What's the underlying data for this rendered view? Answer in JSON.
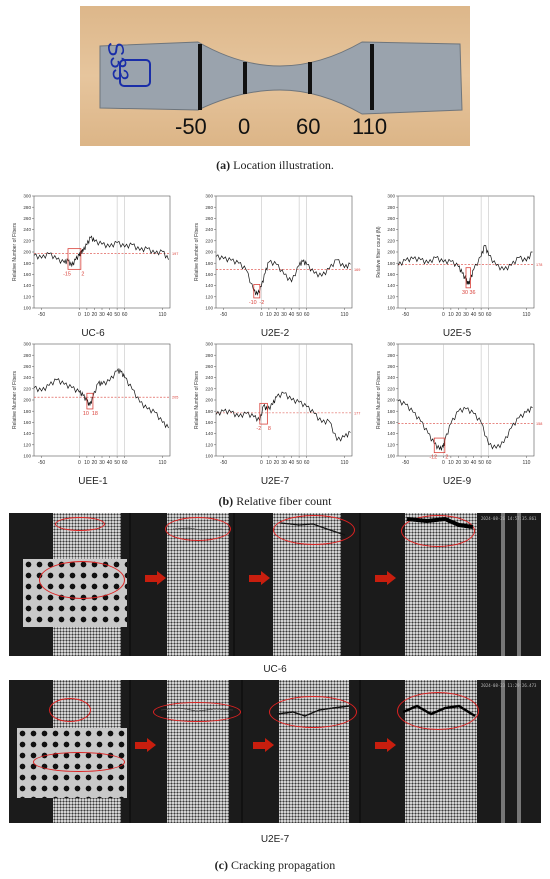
{
  "panel_a": {
    "marker_labels": [
      "-50",
      "0",
      "60",
      "110"
    ],
    "specimen_writing": "S33",
    "caption_letter": "(a)",
    "caption_text": "Location illustration."
  },
  "panel_b": {
    "caption_letter": "(b)",
    "caption_text": "Relative fiber count"
  },
  "panel_c": {
    "caption_letter": "(c)",
    "caption_text": "Cracking propagation",
    "row1_label": "UC-6",
    "row2_label": "U2E-7",
    "row1_timestamp": "2024-08-26 14:57:35.861",
    "row2_timestamp": "2024-08-23 11:29:26.473",
    "accent_color": "#c81e0e"
  },
  "chart_data": [
    {
      "type": "line",
      "title": "UC-6",
      "ylabel": "Relative Number of Fibers",
      "ylim": [
        100,
        300
      ],
      "yticks": [
        100,
        120,
        140,
        160,
        180,
        200,
        220,
        240,
        260,
        280,
        300
      ],
      "xticks": [
        -50,
        0,
        10,
        20,
        30,
        40,
        50,
        60,
        110
      ],
      "xlim": [
        -60,
        120
      ],
      "mean_value": 197,
      "mean_label": "197",
      "highlight": [
        -15,
        2
      ],
      "highlight_labels": [
        "-15",
        "2"
      ],
      "x": [
        -60,
        -50,
        -40,
        -30,
        -20,
        -15,
        -10,
        -5,
        0,
        2,
        5,
        10,
        15,
        20,
        30,
        40,
        50,
        60,
        70,
        80,
        90,
        100,
        110,
        118
      ],
      "y": [
        194,
        189,
        197,
        187,
        181,
        184,
        175,
        186,
        194,
        199,
        202,
        213,
        226,
        219,
        214,
        209,
        217,
        209,
        213,
        203,
        206,
        197,
        201,
        186
      ]
    },
    {
      "type": "line",
      "title": "U2E-2",
      "ylabel": "Relative Number of Fibers",
      "ylim": [
        100,
        300
      ],
      "yticks": [
        100,
        120,
        140,
        160,
        180,
        200,
        220,
        240,
        260,
        280,
        300
      ],
      "xticks": [
        -50,
        0,
        10,
        20,
        30,
        40,
        50,
        60,
        110
      ],
      "xlim": [
        -60,
        120
      ],
      "mean_value": 169,
      "mean_label": "169",
      "highlight": [
        -10,
        -2
      ],
      "highlight_labels": [
        "-10",
        "-2"
      ],
      "x": [
        -60,
        -50,
        -40,
        -30,
        -20,
        -10,
        -5,
        0,
        5,
        10,
        20,
        30,
        40,
        50,
        55,
        60,
        70,
        80,
        90,
        100,
        110,
        118
      ],
      "y": [
        192,
        188,
        185,
        180,
        168,
        130,
        124,
        138,
        162,
        182,
        178,
        160,
        147,
        176,
        183,
        178,
        162,
        157,
        170,
        186,
        172,
        178
      ]
    },
    {
      "type": "line",
      "title": "U2E-5",
      "ylabel": "Relative fiber count (N)",
      "ylim": [
        100,
        300
      ],
      "yticks": [
        100,
        120,
        140,
        160,
        180,
        200,
        220,
        240,
        260,
        280,
        300
      ],
      "xticks": [
        -50,
        0,
        10,
        20,
        30,
        40,
        50,
        60,
        110
      ],
      "xlim": [
        -60,
        120
      ],
      "mean_value": 178,
      "mean_label": "178",
      "highlight": [
        30,
        36
      ],
      "highlight_labels": [
        "30",
        "36"
      ],
      "x": [
        -60,
        -50,
        -40,
        -30,
        -20,
        -10,
        0,
        10,
        20,
        25,
        30,
        33,
        36,
        40,
        50,
        55,
        60,
        70,
        80,
        90,
        100,
        110,
        118
      ],
      "y": [
        176,
        185,
        188,
        186,
        180,
        190,
        182,
        183,
        174,
        162,
        150,
        142,
        151,
        168,
        192,
        212,
        194,
        176,
        168,
        176,
        190,
        184,
        200
      ]
    },
    {
      "type": "line",
      "title": "UEE-1",
      "ylabel": "Relative Number of Fibers",
      "ylim": [
        100,
        300
      ],
      "yticks": [
        100,
        120,
        140,
        160,
        180,
        200,
        220,
        240,
        260,
        280,
        300
      ],
      "xticks": [
        -50,
        0,
        10,
        20,
        30,
        40,
        50,
        60,
        110
      ],
      "xlim": [
        -60,
        120
      ],
      "mean_value": 205,
      "mean_label": "205",
      "highlight": [
        10,
        18
      ],
      "highlight_labels": [
        "10",
        "18"
      ],
      "x": [
        -60,
        -50,
        -40,
        -30,
        -20,
        -10,
        0,
        5,
        10,
        14,
        18,
        25,
        30,
        40,
        50,
        55,
        60,
        70,
        80,
        90,
        100,
        110,
        118
      ],
      "y": [
        222,
        216,
        226,
        236,
        228,
        222,
        214,
        208,
        198,
        190,
        205,
        230,
        228,
        234,
        252,
        250,
        240,
        219,
        196,
        184,
        178,
        160,
        150
      ]
    },
    {
      "type": "line",
      "title": "U2E-7",
      "ylabel": "Relative Number of Fibers",
      "ylim": [
        100,
        300
      ],
      "yticks": [
        100,
        120,
        140,
        160,
        180,
        200,
        220,
        240,
        260,
        280,
        300
      ],
      "xticks": [
        -50,
        0,
        10,
        20,
        30,
        40,
        50,
        60,
        110
      ],
      "xlim": [
        -60,
        120
      ],
      "mean_value": 177,
      "mean_label": "177",
      "highlight": [
        -2,
        8
      ],
      "highlight_labels": [
        "-2",
        "8"
      ],
      "x": [
        -60,
        -50,
        -40,
        -30,
        -20,
        -10,
        -2,
        3,
        8,
        15,
        20,
        30,
        40,
        50,
        60,
        70,
        80,
        90,
        100,
        110,
        118
      ],
      "y": [
        174,
        180,
        178,
        170,
        176,
        170,
        163,
        190,
        182,
        192,
        205,
        212,
        200,
        196,
        188,
        176,
        160,
        162,
        128,
        134,
        142
      ]
    },
    {
      "type": "line",
      "title": "U2E-9",
      "ylabel": "Relative Number of Fibers",
      "ylim": [
        100,
        300
      ],
      "yticks": [
        100,
        120,
        140,
        160,
        180,
        200,
        220,
        240,
        260,
        280,
        300
      ],
      "xticks": [
        -50,
        0,
        10,
        20,
        30,
        40,
        50,
        60,
        110
      ],
      "xlim": [
        -60,
        120
      ],
      "mean_value": 158,
      "mean_label": "158",
      "highlight": [
        -12,
        2
      ],
      "highlight_labels": [
        "-12",
        "2"
      ],
      "x": [
        -60,
        -50,
        -40,
        -30,
        -20,
        -12,
        -5,
        0,
        2,
        10,
        20,
        30,
        40,
        50,
        60,
        70,
        80,
        90,
        100,
        110,
        118
      ],
      "y": [
        198,
        192,
        178,
        162,
        140,
        122,
        112,
        116,
        128,
        158,
        180,
        184,
        176,
        160,
        120,
        114,
        124,
        150,
        168,
        178,
        186
      ]
    }
  ]
}
